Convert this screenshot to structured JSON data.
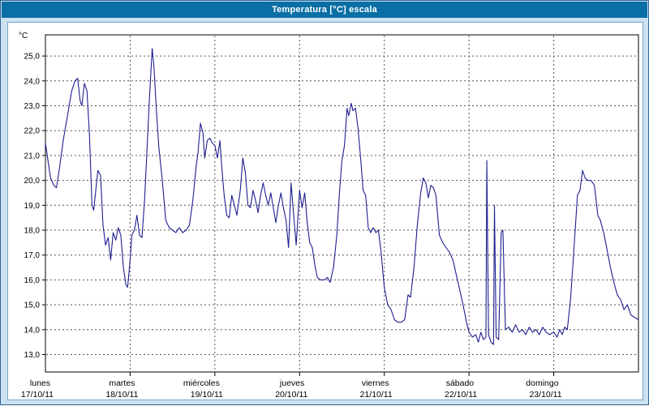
{
  "window": {
    "title": "Temperatura [°C] escala"
  },
  "colors": {
    "titlebar_bg": "#0a6fa4",
    "titlebar_text": "#ffffff",
    "frame_bg": "#cde2f0",
    "frame_border": "#2a6496",
    "panel_bg": "#ffffff",
    "panel_border": "#7aa7c7",
    "plot_border": "#000000",
    "grid": "#555555",
    "line": "#1f1f8f"
  },
  "chart_data": {
    "type": "line",
    "title": "Temperatura [°C] escala",
    "xlabel": "",
    "ylabel": "°C",
    "ylim": [
      12.3,
      25.85
    ],
    "grid": "dashed",
    "legend": "none",
    "yticks": [
      {
        "value": 25,
        "label": "25,0"
      },
      {
        "value": 24,
        "label": "24,0"
      },
      {
        "value": 23,
        "label": "23,0"
      },
      {
        "value": 22,
        "label": "22,0"
      },
      {
        "value": 21,
        "label": "21,0"
      },
      {
        "value": 20,
        "label": "20,0"
      },
      {
        "value": 19,
        "label": "19,0"
      },
      {
        "value": 18,
        "label": "18,0"
      },
      {
        "value": 17,
        "label": "17,0"
      },
      {
        "value": 16,
        "label": "16,0"
      },
      {
        "value": 15,
        "label": "15,0"
      },
      {
        "value": 14,
        "label": "14,0"
      },
      {
        "value": 13,
        "label": "13,0"
      }
    ],
    "x_days": [
      {
        "name": "lunes",
        "date": "17/10/11"
      },
      {
        "name": "martes",
        "date": "18/10/11"
      },
      {
        "name": "miércoles",
        "date": "19/10/11"
      },
      {
        "name": "jueves",
        "date": "20/10/11"
      },
      {
        "name": "viernes",
        "date": "21/10/11"
      },
      {
        "name": "sábado",
        "date": "22/10/11"
      },
      {
        "name": "domingo",
        "date": "23/10/11"
      }
    ],
    "series": [
      {
        "name": "Temperatura",
        "color": "#1f1f8f",
        "points": [
          [
            0.0,
            21.5
          ],
          [
            0.03,
            20.8
          ],
          [
            0.06,
            20.1
          ],
          [
            0.1,
            19.8
          ],
          [
            0.13,
            19.7
          ],
          [
            0.17,
            20.6
          ],
          [
            0.21,
            21.6
          ],
          [
            0.26,
            22.6
          ],
          [
            0.31,
            23.6
          ],
          [
            0.35,
            24.0
          ],
          [
            0.38,
            24.1
          ],
          [
            0.41,
            23.2
          ],
          [
            0.43,
            23.0
          ],
          [
            0.46,
            23.9
          ],
          [
            0.49,
            23.6
          ],
          [
            0.52,
            21.8
          ],
          [
            0.55,
            19.0
          ],
          [
            0.57,
            18.8
          ],
          [
            0.6,
            19.8
          ],
          [
            0.62,
            20.4
          ],
          [
            0.65,
            20.2
          ],
          [
            0.68,
            18.2
          ],
          [
            0.71,
            17.4
          ],
          [
            0.74,
            17.7
          ],
          [
            0.77,
            16.8
          ],
          [
            0.8,
            17.9
          ],
          [
            0.83,
            17.6
          ],
          [
            0.86,
            18.1
          ],
          [
            0.89,
            17.8
          ],
          [
            0.92,
            16.5
          ],
          [
            0.95,
            15.8
          ],
          [
            0.97,
            15.7
          ],
          [
            1.0,
            16.8
          ],
          [
            1.02,
            17.8
          ],
          [
            1.05,
            18.0
          ],
          [
            1.08,
            18.6
          ],
          [
            1.11,
            17.8
          ],
          [
            1.14,
            17.7
          ],
          [
            1.17,
            19.2
          ],
          [
            1.2,
            21.3
          ],
          [
            1.23,
            23.4
          ],
          [
            1.26,
            25.3
          ],
          [
            1.28,
            24.6
          ],
          [
            1.31,
            22.8
          ],
          [
            1.34,
            21.3
          ],
          [
            1.38,
            20.0
          ],
          [
            1.42,
            18.4
          ],
          [
            1.46,
            18.1
          ],
          [
            1.5,
            18.0
          ],
          [
            1.54,
            17.9
          ],
          [
            1.58,
            18.1
          ],
          [
            1.62,
            17.9
          ],
          [
            1.66,
            18.0
          ],
          [
            1.7,
            18.2
          ],
          [
            1.74,
            19.2
          ],
          [
            1.78,
            20.6
          ],
          [
            1.8,
            21.1
          ],
          [
            1.83,
            22.3
          ],
          [
            1.86,
            21.9
          ],
          [
            1.88,
            20.9
          ],
          [
            1.91,
            21.6
          ],
          [
            1.94,
            21.7
          ],
          [
            1.97,
            21.5
          ],
          [
            2.0,
            21.4
          ],
          [
            2.03,
            20.9
          ],
          [
            2.06,
            21.6
          ],
          [
            2.08,
            20.6
          ],
          [
            2.11,
            19.4
          ],
          [
            2.14,
            18.6
          ],
          [
            2.17,
            18.5
          ],
          [
            2.2,
            19.4
          ],
          [
            2.23,
            19.0
          ],
          [
            2.26,
            18.6
          ],
          [
            2.3,
            19.6
          ],
          [
            2.33,
            20.9
          ],
          [
            2.36,
            20.3
          ],
          [
            2.39,
            19.0
          ],
          [
            2.42,
            18.9
          ],
          [
            2.45,
            19.6
          ],
          [
            2.48,
            19.2
          ],
          [
            2.51,
            18.7
          ],
          [
            2.54,
            19.4
          ],
          [
            2.57,
            19.9
          ],
          [
            2.6,
            19.4
          ],
          [
            2.63,
            19.0
          ],
          [
            2.66,
            19.5
          ],
          [
            2.69,
            18.9
          ],
          [
            2.72,
            18.3
          ],
          [
            2.75,
            19.0
          ],
          [
            2.78,
            19.5
          ],
          [
            2.81,
            18.9
          ],
          [
            2.84,
            18.4
          ],
          [
            2.87,
            17.3
          ],
          [
            2.9,
            19.9
          ],
          [
            2.93,
            18.6
          ],
          [
            2.96,
            17.4
          ],
          [
            3.0,
            19.6
          ],
          [
            3.03,
            18.9
          ],
          [
            3.06,
            19.5
          ],
          [
            3.09,
            18.3
          ],
          [
            3.12,
            17.5
          ],
          [
            3.15,
            17.3
          ],
          [
            3.18,
            16.6
          ],
          [
            3.21,
            16.1
          ],
          [
            3.25,
            16.0
          ],
          [
            3.29,
            16.0
          ],
          [
            3.33,
            16.1
          ],
          [
            3.36,
            15.9
          ],
          [
            3.4,
            16.5
          ],
          [
            3.44,
            17.8
          ],
          [
            3.47,
            19.5
          ],
          [
            3.5,
            20.8
          ],
          [
            3.53,
            21.4
          ],
          [
            3.56,
            22.9
          ],
          [
            3.58,
            22.6
          ],
          [
            3.61,
            23.1
          ],
          [
            3.63,
            22.8
          ],
          [
            3.66,
            22.9
          ],
          [
            3.69,
            22.1
          ],
          [
            3.72,
            20.9
          ],
          [
            3.75,
            19.6
          ],
          [
            3.78,
            19.4
          ],
          [
            3.81,
            18.1
          ],
          [
            3.84,
            17.9
          ],
          [
            3.87,
            18.1
          ],
          [
            3.9,
            17.9
          ],
          [
            3.93,
            18.0
          ],
          [
            3.96,
            17.2
          ],
          [
            4.0,
            15.7
          ],
          [
            4.04,
            15.0
          ],
          [
            4.08,
            14.8
          ],
          [
            4.12,
            14.4
          ],
          [
            4.16,
            14.3
          ],
          [
            4.2,
            14.3
          ],
          [
            4.24,
            14.4
          ],
          [
            4.28,
            15.4
          ],
          [
            4.31,
            15.3
          ],
          [
            4.35,
            16.5
          ],
          [
            4.39,
            18.2
          ],
          [
            4.43,
            19.5
          ],
          [
            4.46,
            20.1
          ],
          [
            4.49,
            19.9
          ],
          [
            4.52,
            19.3
          ],
          [
            4.55,
            19.8
          ],
          [
            4.58,
            19.7
          ],
          [
            4.61,
            19.4
          ],
          [
            4.65,
            17.8
          ],
          [
            4.69,
            17.5
          ],
          [
            4.73,
            17.3
          ],
          [
            4.77,
            17.1
          ],
          [
            4.81,
            16.8
          ],
          [
            4.85,
            16.2
          ],
          [
            4.89,
            15.6
          ],
          [
            4.93,
            15.0
          ],
          [
            4.97,
            14.3
          ],
          [
            5.0,
            13.9
          ],
          [
            5.04,
            13.7
          ],
          [
            5.08,
            13.8
          ],
          [
            5.11,
            13.5
          ],
          [
            5.14,
            13.9
          ],
          [
            5.17,
            13.6
          ],
          [
            5.2,
            13.7
          ],
          [
            5.21,
            20.8
          ],
          [
            5.23,
            13.8
          ],
          [
            5.26,
            13.5
          ],
          [
            5.29,
            13.4
          ],
          [
            5.3,
            19.0
          ],
          [
            5.32,
            13.7
          ],
          [
            5.35,
            13.6
          ],
          [
            5.38,
            17.9
          ],
          [
            5.4,
            18.0
          ],
          [
            5.43,
            14.0
          ],
          [
            5.47,
            14.1
          ],
          [
            5.51,
            13.9
          ],
          [
            5.55,
            14.2
          ],
          [
            5.59,
            13.9
          ],
          [
            5.63,
            14.0
          ],
          [
            5.67,
            13.8
          ],
          [
            5.71,
            14.1
          ],
          [
            5.75,
            13.9
          ],
          [
            5.79,
            14.0
          ],
          [
            5.83,
            13.8
          ],
          [
            5.87,
            14.1
          ],
          [
            5.91,
            13.9
          ],
          [
            5.95,
            13.8
          ],
          [
            6.0,
            13.9
          ],
          [
            6.04,
            13.7
          ],
          [
            6.07,
            14.0
          ],
          [
            6.1,
            13.8
          ],
          [
            6.13,
            14.1
          ],
          [
            6.16,
            14.0
          ],
          [
            6.2,
            15.3
          ],
          [
            6.24,
            17.3
          ],
          [
            6.28,
            19.4
          ],
          [
            6.31,
            19.6
          ],
          [
            6.34,
            20.4
          ],
          [
            6.37,
            20.1
          ],
          [
            6.4,
            20.0
          ],
          [
            6.44,
            20.0
          ],
          [
            6.48,
            19.8
          ],
          [
            6.52,
            18.6
          ],
          [
            6.55,
            18.4
          ],
          [
            6.59,
            17.9
          ],
          [
            6.63,
            17.2
          ],
          [
            6.67,
            16.5
          ],
          [
            6.71,
            15.9
          ],
          [
            6.75,
            15.4
          ],
          [
            6.79,
            15.2
          ],
          [
            6.83,
            14.8
          ],
          [
            6.87,
            15.0
          ],
          [
            6.91,
            14.6
          ],
          [
            6.95,
            14.5
          ],
          [
            7.0,
            14.4
          ]
        ]
      }
    ]
  }
}
